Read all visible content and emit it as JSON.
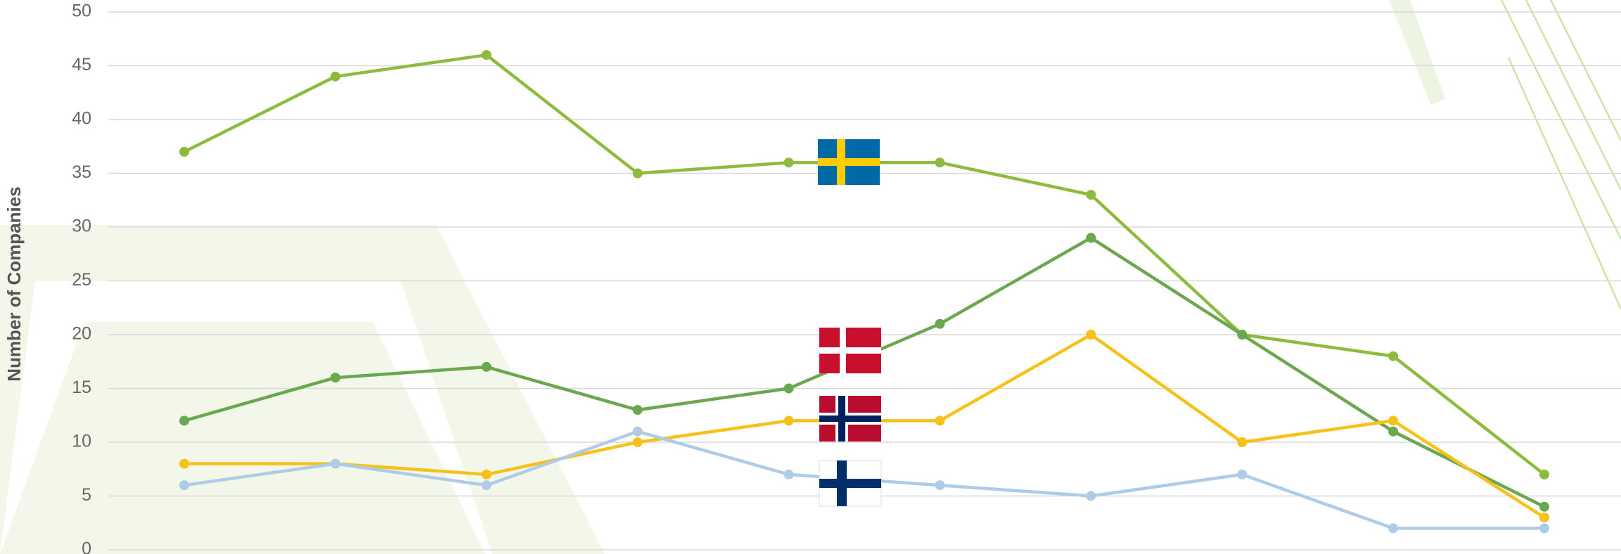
{
  "chart_data": {
    "type": "line",
    "y_label": "Number of Companies",
    "categories": [
      null,
      null,
      null,
      null,
      null,
      null,
      null,
      null,
      null,
      null
    ],
    "series": [
      {
        "color": "#8dbb3e",
        "values": [
          37,
          44,
          46,
          35,
          36,
          36,
          33,
          20,
          18,
          7
        ]
      },
      {
        "color": "#6aa84f",
        "values": [
          12,
          16,
          17,
          13,
          15,
          21,
          29,
          20,
          11,
          4
        ]
      },
      {
        "color": "#f6c21a",
        "values": [
          8,
          8,
          7,
          10,
          12,
          12,
          20,
          10,
          12,
          3
        ]
      },
      {
        "color": "#aecbe8",
        "values": [
          6,
          8,
          6,
          11,
          7,
          6,
          5,
          7,
          2,
          2
        ]
      }
    ],
    "ylim": [
      0,
      50
    ],
    "yticks": [
      0,
      5,
      10,
      15,
      20,
      25,
      30,
      35,
      40,
      45,
      50
    ],
    "grid": true
  }
}
